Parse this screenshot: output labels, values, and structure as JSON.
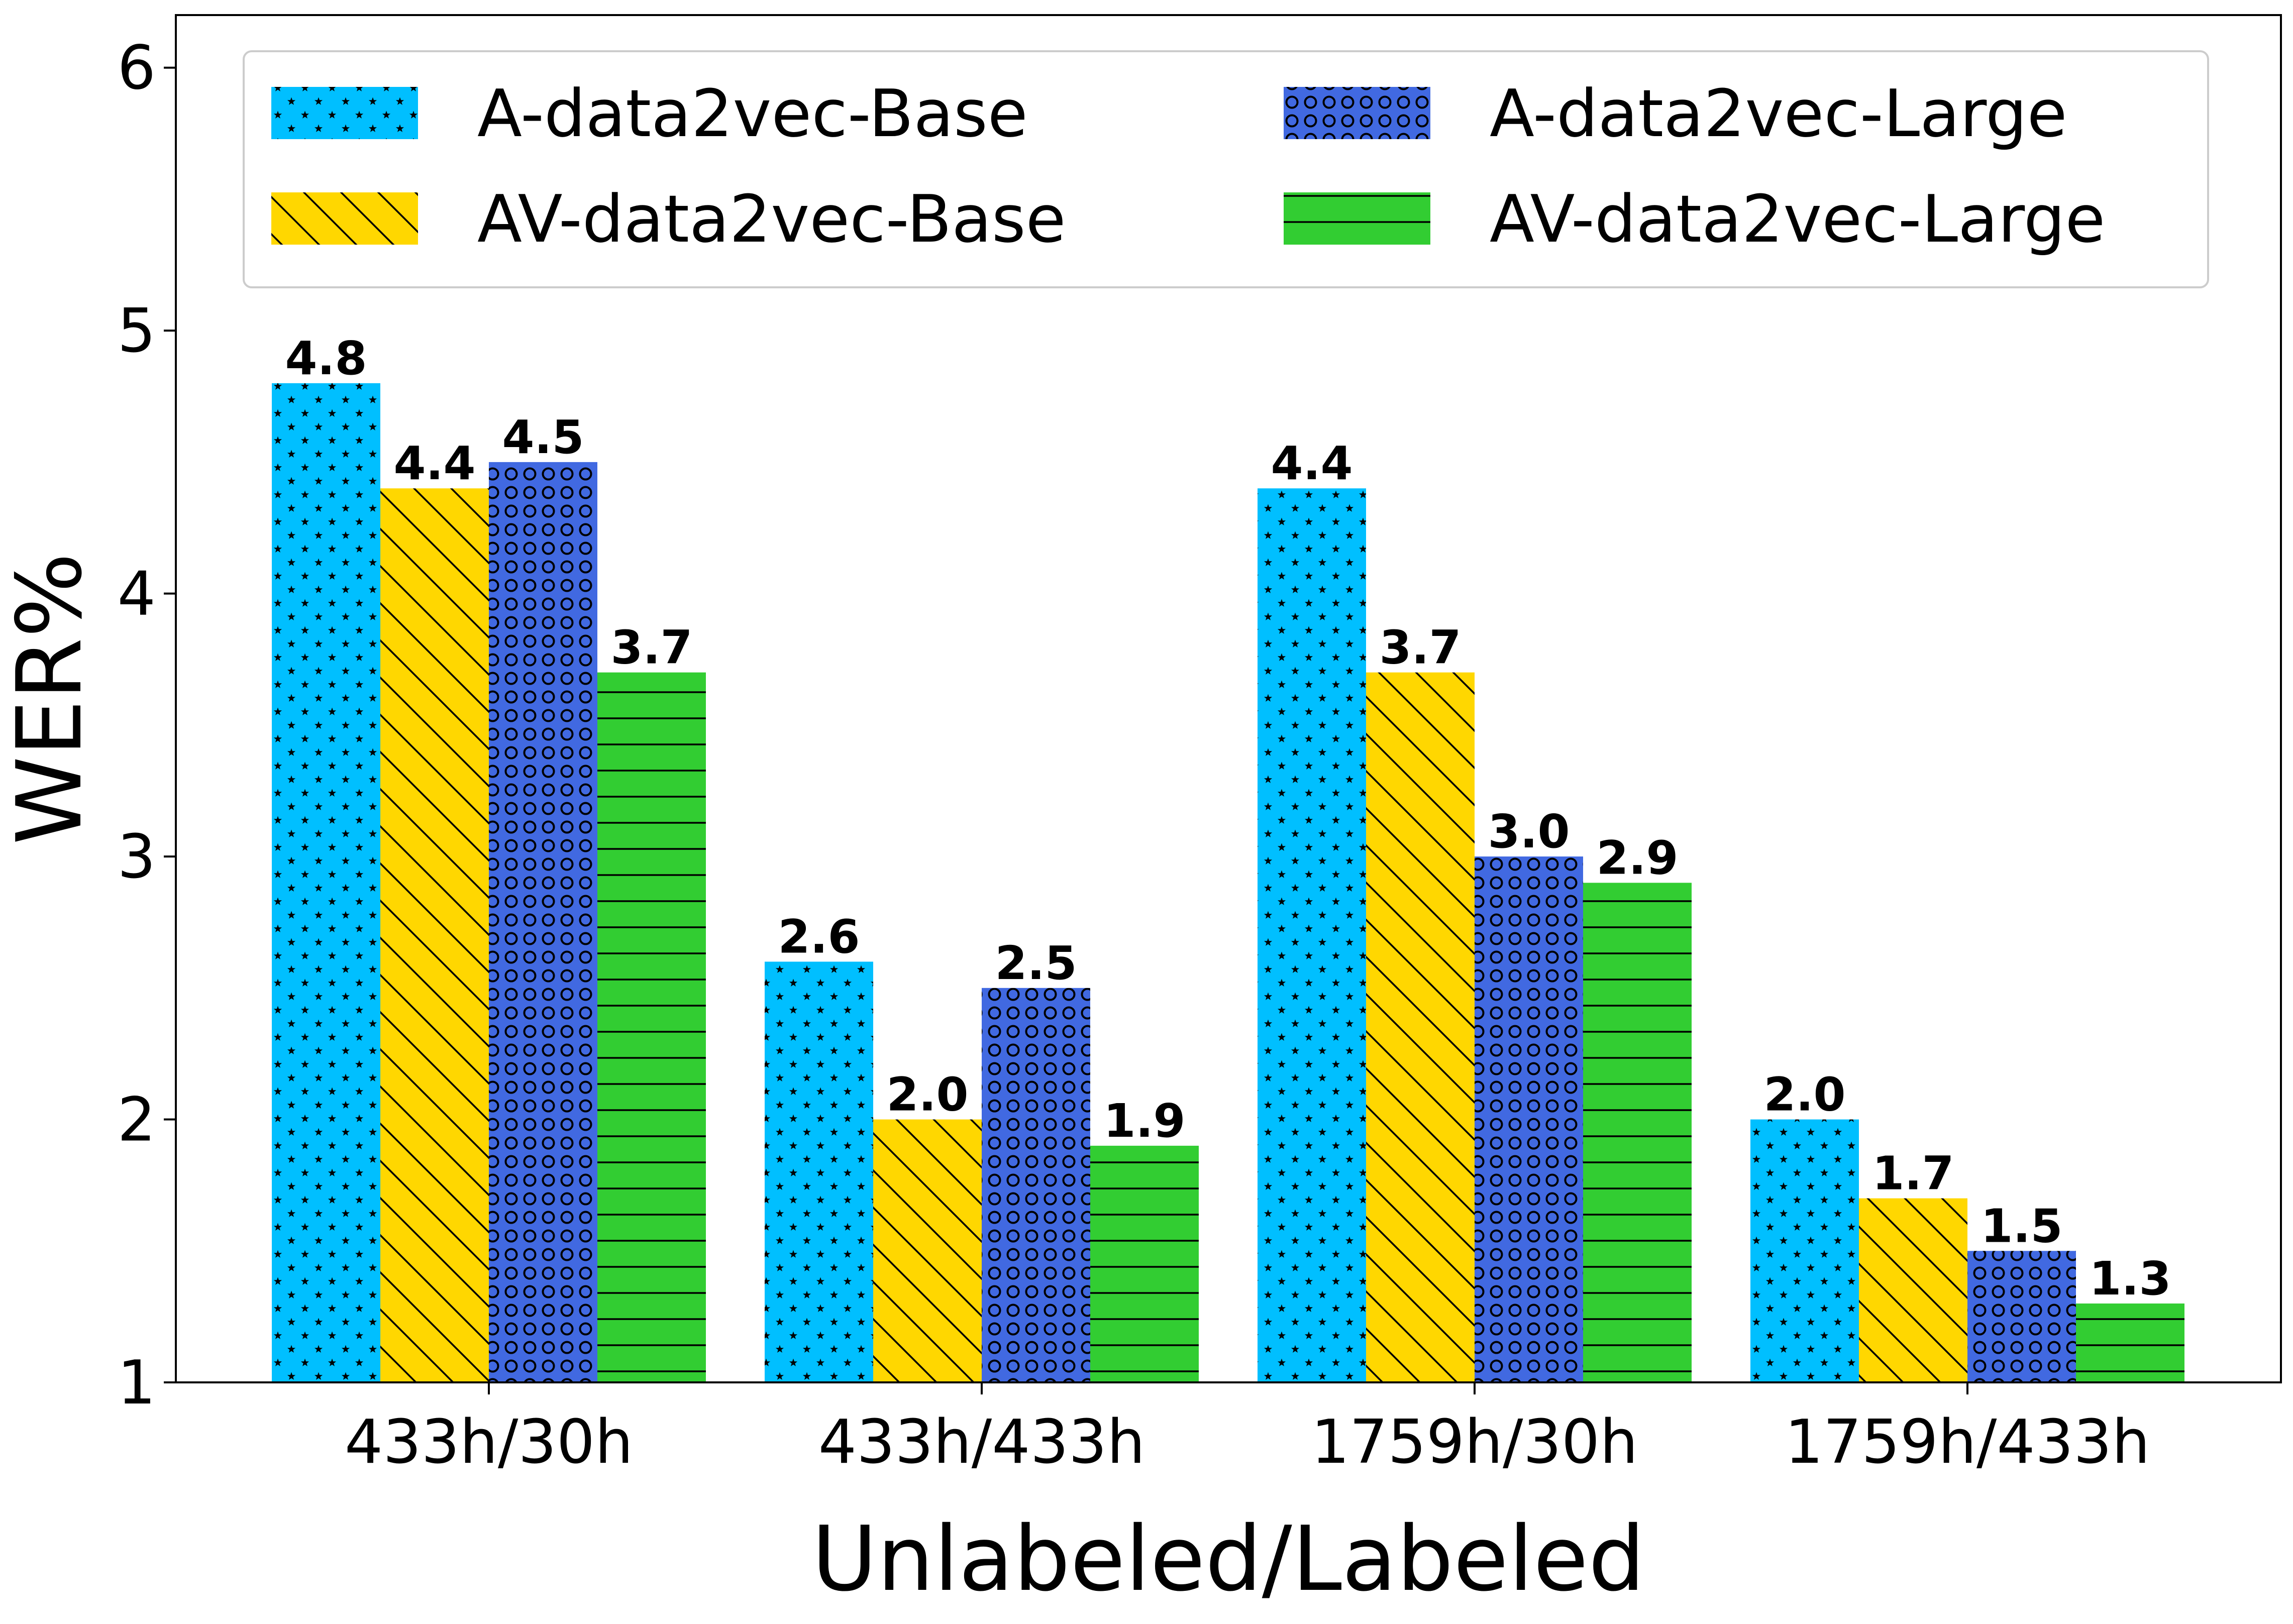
{
  "chart_data": {
    "type": "bar",
    "title": "",
    "xlabel": "Unlabeled/Labeled",
    "ylabel": "WER%",
    "ylim": [
      1,
      6.2
    ],
    "yticks": [
      "1",
      "2",
      "3",
      "4",
      "5",
      "6"
    ],
    "grid": false,
    "legend_position": "top",
    "categories": [
      "433h/30h",
      "433h/433h",
      "1759h/30h",
      "1759h/433h"
    ],
    "series": [
      {
        "name": "A-data2vec-Base",
        "values": [
          4.8,
          2.6,
          4.4,
          2.0
        ],
        "labels": [
          "4.8",
          "2.6",
          "4.4",
          "2.0"
        ],
        "color": "#00bfff",
        "hatch": "stars"
      },
      {
        "name": "AV-data2vec-Base",
        "values": [
          4.4,
          2.0,
          3.7,
          1.7
        ],
        "labels": [
          "4.4",
          "2.0",
          "3.7",
          "1.7"
        ],
        "color": "#ffd700",
        "hatch": "diagonal"
      },
      {
        "name": "A-data2vec-Large",
        "values": [
          4.5,
          2.5,
          3.0,
          1.5
        ],
        "labels": [
          "4.5",
          "2.5",
          "3.0",
          "1.5"
        ],
        "color": "#4169e1",
        "hatch": "circles"
      },
      {
        "name": "AV-data2vec-Large",
        "values": [
          3.7,
          1.9,
          2.9,
          1.3
        ],
        "labels": [
          "3.7",
          "1.9",
          "2.9",
          "1.3"
        ],
        "color": "#32cd32",
        "hatch": "horizontal"
      }
    ]
  }
}
